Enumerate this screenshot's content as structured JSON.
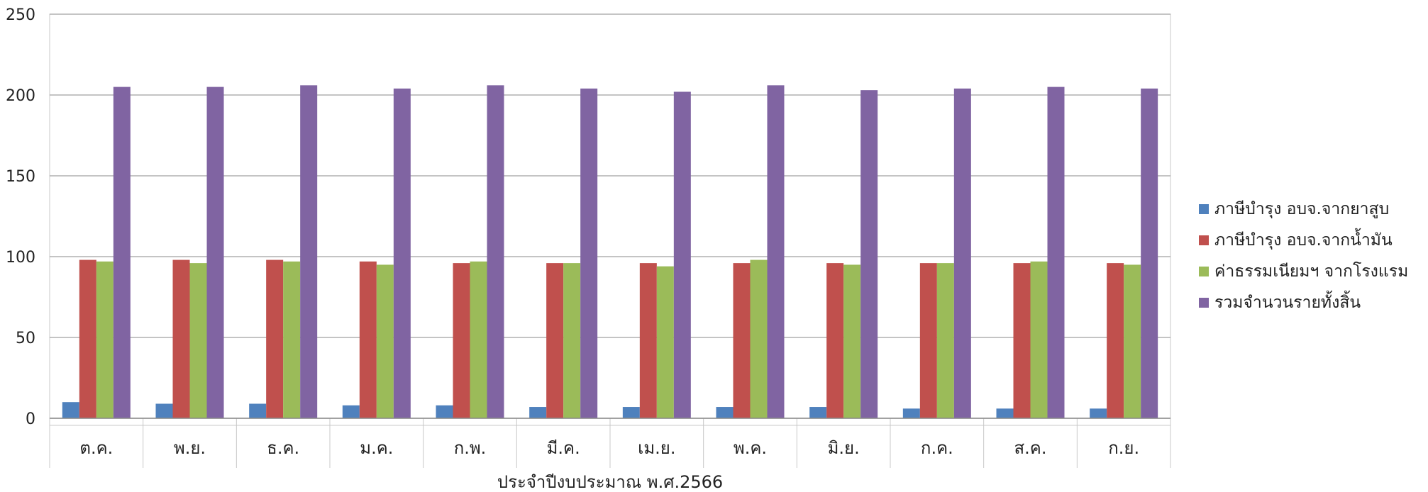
{
  "chart_data": {
    "type": "bar",
    "xlabel": "ประจำปีงบประมาณ พ.ศ.2566",
    "ylabel": "",
    "ylim": [
      0,
      250
    ],
    "yticks": [
      0,
      50,
      100,
      150,
      200,
      250
    ],
    "grid": true,
    "legend_position": "right",
    "categories": [
      "ต.ค.",
      "พ.ย.",
      "ธ.ค.",
      "ม.ค.",
      "ก.พ.",
      "มี.ค.",
      "เม.ย.",
      "พ.ค.",
      "มิ.ย.",
      "ก.ค.",
      "ส.ค.",
      "ก.ย."
    ],
    "series": [
      {
        "name": "ภาษีบำรุง อบจ.จากยาสูบ",
        "color": "#4f81bd",
        "values": [
          10,
          9,
          9,
          8,
          8,
          7,
          7,
          7,
          7,
          6,
          6,
          6
        ]
      },
      {
        "name": "ภาษีบำรุง อบจ.จากน้ำมัน",
        "color": "#c0504d",
        "values": [
          98,
          98,
          98,
          97,
          96,
          96,
          96,
          96,
          96,
          96,
          96,
          96
        ]
      },
      {
        "name": "ค่าธรรมเนียมฯ จากโรงแรม",
        "color": "#9bbb59",
        "values": [
          97,
          96,
          97,
          95,
          97,
          96,
          94,
          98,
          95,
          96,
          97,
          95
        ]
      },
      {
        "name": "รวมจำนวนรายทั้งสิ้น",
        "color": "#8064a2",
        "values": [
          205,
          205,
          206,
          204,
          206,
          204,
          202,
          206,
          203,
          204,
          205,
          204
        ]
      }
    ]
  }
}
